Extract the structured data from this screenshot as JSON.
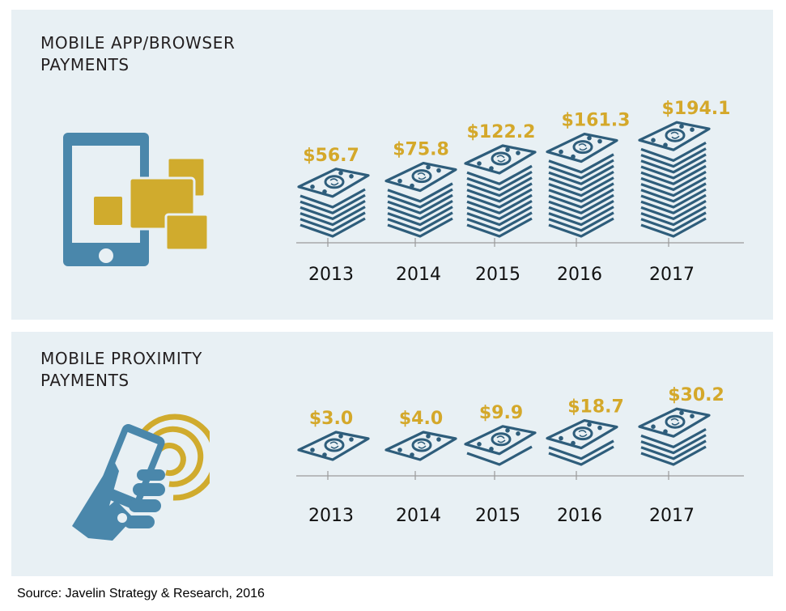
{
  "colors": {
    "panel_bg": "#e8f0f4",
    "value_label": "#d4a82a",
    "money_stroke": "#2e5d7b",
    "icon_blue": "#4a87ab",
    "icon_gold": "#d0ab2d",
    "axis": "#9a9a9a",
    "text": "#231f20"
  },
  "chart_data": [
    {
      "type": "bar",
      "title": "MOBILE APP/BROWSER PAYMENTS",
      "title_lines": [
        "MOBILE APP/BROWSER",
        "PAYMENTS"
      ],
      "mark_style": "stacked-money-pictogram",
      "icon": "smartphone-with-apps-icon",
      "categories": [
        "2013",
        "2014",
        "2015",
        "2016",
        "2017"
      ],
      "values": [
        56.7,
        75.8,
        122.2,
        161.3,
        194.1
      ],
      "value_labels": [
        "$56.7",
        "$75.8",
        "$122.2",
        "$161.3",
        "$194.1"
      ],
      "unit": "USD (billions implied)",
      "xlabel": "",
      "ylabel": "",
      "grid": false,
      "legend": "none"
    },
    {
      "type": "bar",
      "title": "MOBILE PROXIMITY PAYMENTS",
      "title_lines": [
        "MOBILE PROXIMITY",
        "PAYMENTS"
      ],
      "mark_style": "stacked-money-pictogram",
      "icon": "hand-holding-phone-contactless-icon",
      "categories": [
        "2013",
        "2014",
        "2015",
        "2016",
        "2017"
      ],
      "values": [
        3.0,
        4.0,
        9.9,
        18.7,
        30.2
      ],
      "value_labels": [
        "$3.0",
        "$4.0",
        "$9.9",
        "$18.7",
        "$30.2"
      ],
      "unit": "USD (billions implied)",
      "xlabel": "",
      "ylabel": "",
      "grid": false,
      "legend": "none"
    }
  ],
  "source": "Source: Javelin Strategy & Research, 2016"
}
